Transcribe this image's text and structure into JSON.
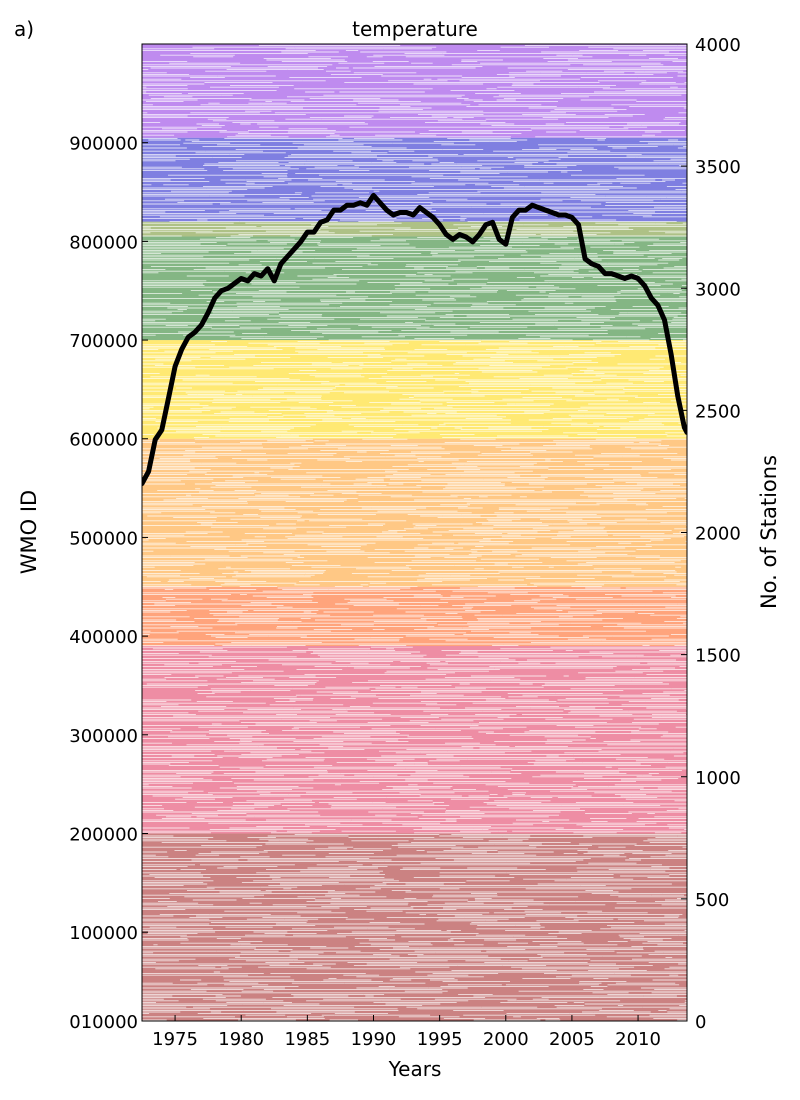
{
  "chart_data": {
    "type": "line",
    "panel_label": "a)",
    "title": "temperature",
    "xlabel": "Years",
    "ylabel": "WMO ID",
    "y2label": "No. of Stations",
    "xlim": [
      1972.5,
      2013.7
    ],
    "ylim_left": [
      10000,
      1000000
    ],
    "ylim_right": [
      0,
      4000
    ],
    "x_ticks": [
      1975,
      1980,
      1985,
      1990,
      1995,
      2000,
      2005,
      2010
    ],
    "x_tick_labels": [
      "1975",
      "1980",
      "1985",
      "1990",
      "1995",
      "2000",
      "2005",
      "2010"
    ],
    "y_left_ticks": [
      "010000",
      "100000",
      "200000",
      "300000",
      "400000",
      "500000",
      "600000",
      "700000",
      "800000",
      "900000"
    ],
    "y_right_ticks": [
      "0",
      "500",
      "1000",
      "1500",
      "2000",
      "2500",
      "3000",
      "3500",
      "4000"
    ],
    "background_bands": [
      {
        "from": 10000,
        "to": 200000,
        "color": "#a01c1c"
      },
      {
        "from": 200000,
        "to": 390000,
        "color": "#e0305a"
      },
      {
        "from": 390000,
        "to": 450000,
        "color": "#ff5a10"
      },
      {
        "from": 450000,
        "to": 600000,
        "color": "#ff9a20"
      },
      {
        "from": 600000,
        "to": 700000,
        "color": "#ffd700"
      },
      {
        "from": 700000,
        "to": 805000,
        "color": "#1f7a1f"
      },
      {
        "from": 805000,
        "to": 820000,
        "color": "#6b8e23"
      },
      {
        "from": 820000,
        "to": 905000,
        "color": "#1515c8"
      },
      {
        "from": 905000,
        "to": 1000000,
        "color": "#8a2be2"
      }
    ],
    "series": [
      {
        "color": "#000000",
        "x": [
          1972.5,
          1973.0,
          1973.5,
          1974.0,
          1974.5,
          1975.0,
          1975.5,
          1976.0,
          1976.5,
          1977.0,
          1977.5,
          1978.0,
          1978.5,
          1979.0,
          1979.5,
          1980.0,
          1980.5,
          1981.0,
          1981.5,
          1982.0,
          1982.5,
          1983.0,
          1983.5,
          1984.0,
          1984.5,
          1985.0,
          1985.5,
          1986.0,
          1986.5,
          1987.0,
          1987.5,
          1988.0,
          1988.5,
          1989.0,
          1989.5,
          1990.0,
          1990.5,
          1991.0,
          1991.5,
          1992.0,
          1992.5,
          1993.0,
          1993.5,
          1994.0,
          1994.5,
          1995.0,
          1995.5,
          1996.0,
          1996.5,
          1997.0,
          1997.5,
          1998.0,
          1998.5,
          1999.0,
          1999.5,
          2000.0,
          2000.5,
          2001.0,
          2001.5,
          2002.0,
          2002.5,
          2003.0,
          2003.5,
          2004.0,
          2004.5,
          2005.0,
          2005.5,
          2006.0,
          2006.5,
          2007.0,
          2007.5,
          2008.0,
          2008.5,
          2009.0,
          2009.5,
          2010.0,
          2010.5,
          2011.0,
          2011.5,
          2012.0,
          2012.5,
          2013.0,
          2013.5,
          2013.7
        ],
        "y": [
          2200,
          2250,
          2380,
          2420,
          2550,
          2680,
          2750,
          2800,
          2820,
          2850,
          2900,
          2960,
          2990,
          3000,
          3020,
          3040,
          3030,
          3060,
          3050,
          3080,
          3030,
          3100,
          3130,
          3160,
          3190,
          3230,
          3230,
          3270,
          3280,
          3320,
          3320,
          3340,
          3340,
          3350,
          3340,
          3380,
          3350,
          3320,
          3300,
          3310,
          3310,
          3300,
          3330,
          3310,
          3290,
          3260,
          3220,
          3200,
          3220,
          3210,
          3190,
          3220,
          3260,
          3270,
          3200,
          3180,
          3290,
          3320,
          3320,
          3340,
          3330,
          3320,
          3310,
          3300,
          3300,
          3290,
          3260,
          3120,
          3100,
          3090,
          3060,
          3060,
          3050,
          3040,
          3050,
          3040,
          3010,
          2960,
          2930,
          2870,
          2730,
          2560,
          2430,
          2410
        ]
      }
    ]
  }
}
